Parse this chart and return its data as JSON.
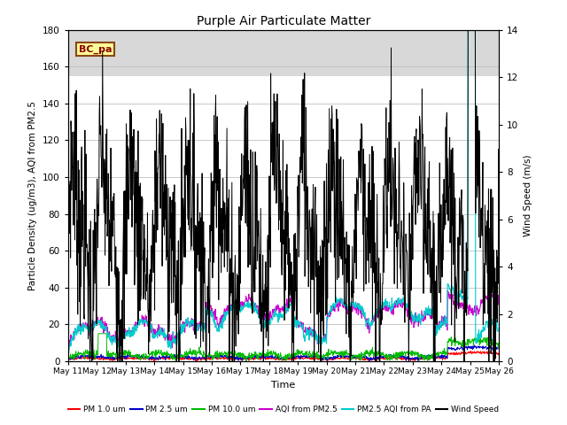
{
  "title": "Purple Air Particulate Matter",
  "xlabel": "Time",
  "ylabel_left": "Particle Density (ug/m3), AQI from PM2.5",
  "ylabel_right": "Wind Speed (m/s)",
  "ylim_left": [
    0,
    180
  ],
  "ylim_right": [
    0,
    14
  ],
  "annotation_text": "BC_pa",
  "annotation_box_color": "#FFFF99",
  "annotation_box_edge": "#8B4513",
  "x_tick_labels": [
    "May 11",
    "May 12",
    "May 13",
    "May 14",
    "May 15",
    "May 16",
    "May 17",
    "May 18",
    "May 19",
    "May 20",
    "May 21",
    "May 22",
    "May 23",
    "May 24",
    "May 25",
    "May 26"
  ],
  "bg_color_lower": "#FFFFFF",
  "bg_color_upper": "#D8D8D8",
  "bg_split": 155,
  "legend_entries": [
    {
      "label": "PM 1.0 um",
      "color": "#FF0000"
    },
    {
      "label": "PM 2.5 um",
      "color": "#0000CC"
    },
    {
      "label": "PM 10.0 um",
      "color": "#00BB00"
    },
    {
      "label": "AQI from PM2.5",
      "color": "#CC00CC"
    },
    {
      "label": "PM2.5 AQI from PA",
      "color": "#00CCCC"
    },
    {
      "label": "Wind Speed",
      "color": "#000000"
    }
  ]
}
